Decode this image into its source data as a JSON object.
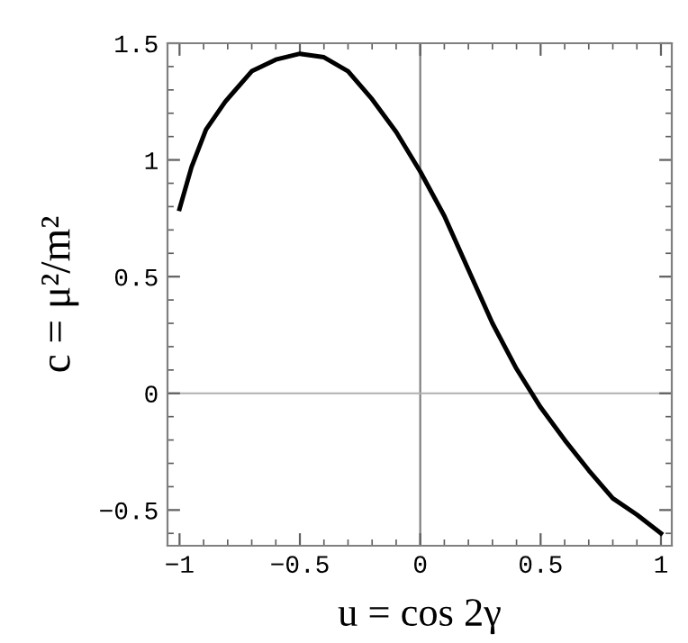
{
  "chart_data": {
    "type": "line",
    "xlabel": "u = cos 2γ",
    "ylabel": "c = μ²/m²",
    "x": [
      -1,
      -0.95,
      -0.89,
      -0.81,
      -0.7,
      -0.6,
      -0.5,
      -0.4,
      -0.3,
      -0.2,
      -0.1,
      0,
      0.1,
      0.2,
      0.3,
      0.4,
      0.5,
      0.6,
      0.7,
      0.8,
      0.9,
      1
    ],
    "series": [
      {
        "color": "#000000",
        "values": [
          0.79,
          0.97,
          1.13,
          1.25,
          1.38,
          1.43,
          1.455,
          1.44,
          1.38,
          1.26,
          1.12,
          0.95,
          0.76,
          0.53,
          0.3,
          0.105,
          -0.06,
          -0.2,
          -0.33,
          -0.45,
          -0.52,
          -0.6
        ]
      }
    ],
    "xlim": [
      -1.05,
      1.045
    ],
    "ylim": [
      -0.653,
      1.5
    ],
    "xticks": [
      {
        "value": -1,
        "label": "−1"
      },
      {
        "value": -0.5,
        "label": "−0.5"
      },
      0,
      0.5,
      1
    ],
    "yticks": [
      {
        "value": -0.5,
        "label": "−0.5"
      },
      0,
      0.5,
      1,
      1.5
    ],
    "ref_lines": [
      {
        "axis": "x",
        "value": 0,
        "color": "#808080"
      },
      {
        "axis": "y",
        "value": 0,
        "color": "#b0b0b0"
      }
    ],
    "grid": false,
    "marker": "none",
    "line_style": "solid"
  }
}
